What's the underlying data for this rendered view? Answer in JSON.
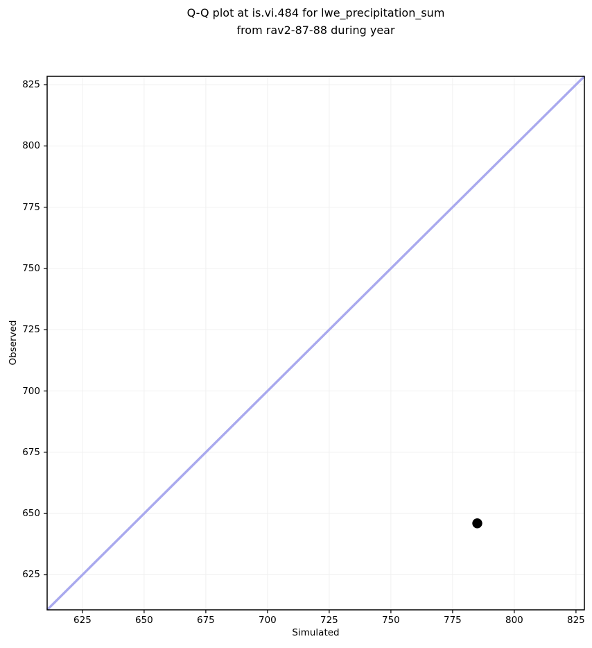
{
  "chart_data": {
    "type": "scatter",
    "title": "Q-Q plot at is.vi.484 for lwe_precipitation_sum\nfrom rav2-87-88 during year",
    "title_lines": [
      "Q-Q plot at is.vi.484 for lwe_precipitation_sum",
      "from rav2-87-88 during year"
    ],
    "xlabel": "Simulated",
    "ylabel": "Observed",
    "xlim": [
      610.7,
      828.4
    ],
    "ylim": [
      610.7,
      828.4
    ],
    "xticks": [
      625,
      650,
      675,
      700,
      725,
      750,
      775,
      800,
      825
    ],
    "yticks": [
      625,
      650,
      675,
      700,
      725,
      750,
      775,
      800,
      825
    ],
    "grid": true,
    "legend_position": "none",
    "series": [
      {
        "name": "quantile-points",
        "marker": "circle",
        "color": "#000000",
        "marker_radius": 7.2,
        "points": [
          {
            "x": 785,
            "y": 646
          }
        ]
      }
    ],
    "reference_line": {
      "label": "identity-line",
      "x": [
        610.7,
        828.4
      ],
      "y": [
        610.7,
        828.4
      ],
      "color": "#a9a9ee",
      "width": 3.4
    },
    "colors": {
      "grid": "#f0f0f0",
      "spine": "#000000",
      "tick": "#000000",
      "text": "#000000",
      "background": "#ffffff"
    }
  }
}
